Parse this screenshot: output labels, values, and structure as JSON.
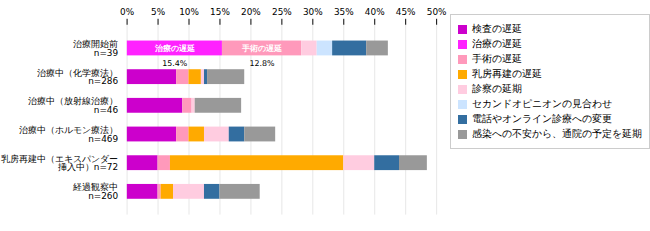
{
  "chart_data": {
    "type": "bar",
    "orientation": "horizontal",
    "stacked": true,
    "categories": [
      "治療開始前\nn=39",
      "治療中（化学療法）\nn=286",
      "治療中（放射線治療）\nn=46",
      "治療中（ホルモン療法）\nn=469",
      "乳房再建中（エキスパンダー\n挿入中）n=72",
      "経過観察中\nn=260"
    ],
    "series": [
      {
        "name": "検査の遅延",
        "color": "#cc00cc",
        "values": [
          0.0,
          8.0,
          9.0,
          8.0,
          5.0,
          5.0
        ]
      },
      {
        "name": "治療の遅延",
        "color": "#ff22ff",
        "values": [
          15.4,
          0.0,
          0.0,
          0.0,
          0.0,
          0.0
        ],
        "value_labels": [
          "15.4%",
          null,
          null,
          null,
          null,
          null
        ]
      },
      {
        "name": "手術の遅延",
        "color": "#ff99bb",
        "values": [
          12.8,
          2.0,
          1.5,
          2.0,
          2.0,
          0.5
        ],
        "value_labels": [
          "12.8%",
          null,
          null,
          null,
          null,
          null
        ]
      },
      {
        "name": "乳房再建の遅延",
        "color": "#ffaa00",
        "values": [
          0.0,
          2.0,
          0.0,
          2.5,
          28.0,
          2.0
        ]
      },
      {
        "name": "診察の延期",
        "color": "#ffcce0",
        "values": [
          2.5,
          0.5,
          0.5,
          4.0,
          5.0,
          5.0
        ]
      },
      {
        "name": "セカンドオピニオンの見合わせ",
        "color": "#cce4ff",
        "values": [
          2.5,
          0.0,
          0.0,
          0.0,
          0.0,
          0.0
        ]
      },
      {
        "name": "電話やオンライン診療への変更",
        "color": "#336ea0",
        "values": [
          5.5,
          0.5,
          0.0,
          2.5,
          4.0,
          2.5
        ]
      },
      {
        "name": "感染への不安から、通院の予定を延期",
        "color": "#999999",
        "values": [
          3.5,
          6.0,
          7.5,
          5.0,
          4.5,
          6.5
        ]
      }
    ],
    "annotations": [
      {
        "text": "治療の遅延",
        "category": "治療開始前\nn=39",
        "series": "治療の遅延"
      },
      {
        "text": "手術の遅延",
        "category": "治療開始前\nn=39",
        "series": "手術の遅延"
      }
    ],
    "xlim": [
      0,
      50
    ],
    "xticks": [
      {
        "value": 0,
        "label": "0%"
      },
      {
        "value": 5,
        "label": "5%"
      },
      {
        "value": 10,
        "label": "10%"
      },
      {
        "value": 15,
        "label": "15%"
      },
      {
        "value": 20,
        "label": "20%"
      },
      {
        "value": 25,
        "label": "25%"
      },
      {
        "value": 30,
        "label": "30%"
      },
      {
        "value": 35,
        "label": "35%"
      },
      {
        "value": 40,
        "label": "40%"
      },
      {
        "value": 45,
        "label": "45%"
      },
      {
        "value": 50,
        "label": "50%"
      }
    ],
    "grid": true,
    "legend": "right"
  }
}
